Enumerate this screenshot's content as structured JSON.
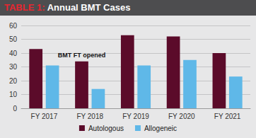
{
  "chart_data": {
    "type": "bar",
    "title": "TABLE 1: Annual BMT Cases",
    "categories": [
      "FY 2017",
      "FY 2018",
      "FY 2019",
      "FY 2020",
      "FY 2021"
    ],
    "series": [
      {
        "name": "Autologous",
        "color": "#5b0b2a",
        "values": [
          43,
          34,
          53,
          52,
          40
        ]
      },
      {
        "name": "Allogeneic",
        "color": "#5fb8e8",
        "values": [
          31,
          14,
          31,
          35,
          23
        ]
      }
    ],
    "annotations": [
      {
        "text": "BMT FT opened",
        "category": "FY 2018",
        "series": "Autologous"
      }
    ],
    "ylim": [
      0,
      60
    ],
    "yticks": [
      0,
      10,
      20,
      30,
      40,
      50,
      60
    ],
    "grid": true,
    "legend": "bottom"
  }
}
